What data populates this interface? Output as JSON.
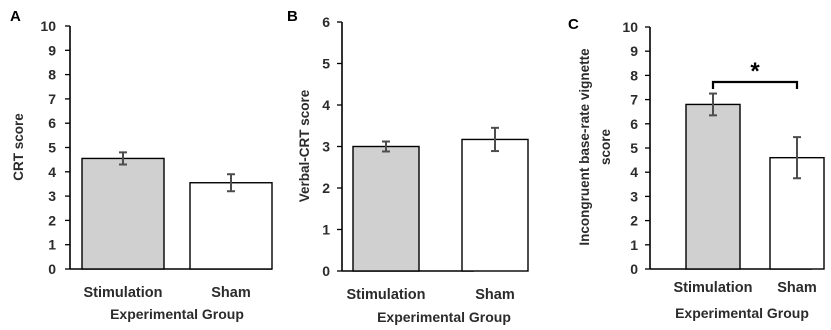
{
  "colors": {
    "stimulation_fill": "#d0d0d0",
    "sham_fill": "#ffffff",
    "bar_outline": "#000000",
    "axis": "#000000",
    "error_bar": "#4d4d4d"
  },
  "chart_data": [
    {
      "type": "bar",
      "panel": "A",
      "categories": [
        "Stimulation",
        "Sham"
      ],
      "values": [
        4.55,
        3.55
      ],
      "errors": [
        0.25,
        0.35
      ],
      "xlabel": "Experimental Group",
      "ylabel": "CRT score",
      "ylim": [
        0,
        10
      ],
      "yticks": [
        0,
        1,
        2,
        3,
        4,
        5,
        6,
        7,
        8,
        9,
        10
      ],
      "grid": false,
      "legend": "none"
    },
    {
      "type": "bar",
      "panel": "B",
      "categories": [
        "Stimulation",
        "Sham"
      ],
      "values": [
        3.0,
        3.17
      ],
      "errors": [
        0.12,
        0.28
      ],
      "xlabel": "Experimental Group",
      "ylabel": "Verbal-CRT score",
      "ylim": [
        0,
        6
      ],
      "yticks": [
        0,
        1,
        2,
        3,
        4,
        5,
        6
      ],
      "grid": false,
      "legend": "none"
    },
    {
      "type": "bar",
      "panel": "C",
      "categories": [
        "Stimulation",
        "Sham"
      ],
      "values": [
        6.8,
        4.6
      ],
      "errors": [
        0.45,
        0.85
      ],
      "xlabel": "Experimental Group",
      "ylabel": "Incongruent base-rate vignette score",
      "ylim": [
        0,
        10
      ],
      "yticks": [
        0,
        1,
        2,
        3,
        4,
        5,
        6,
        7,
        8,
        9,
        10
      ],
      "grid": false,
      "legend": "none",
      "significance": {
        "label": "*",
        "between": [
          "Stimulation",
          "Sham"
        ]
      }
    }
  ]
}
